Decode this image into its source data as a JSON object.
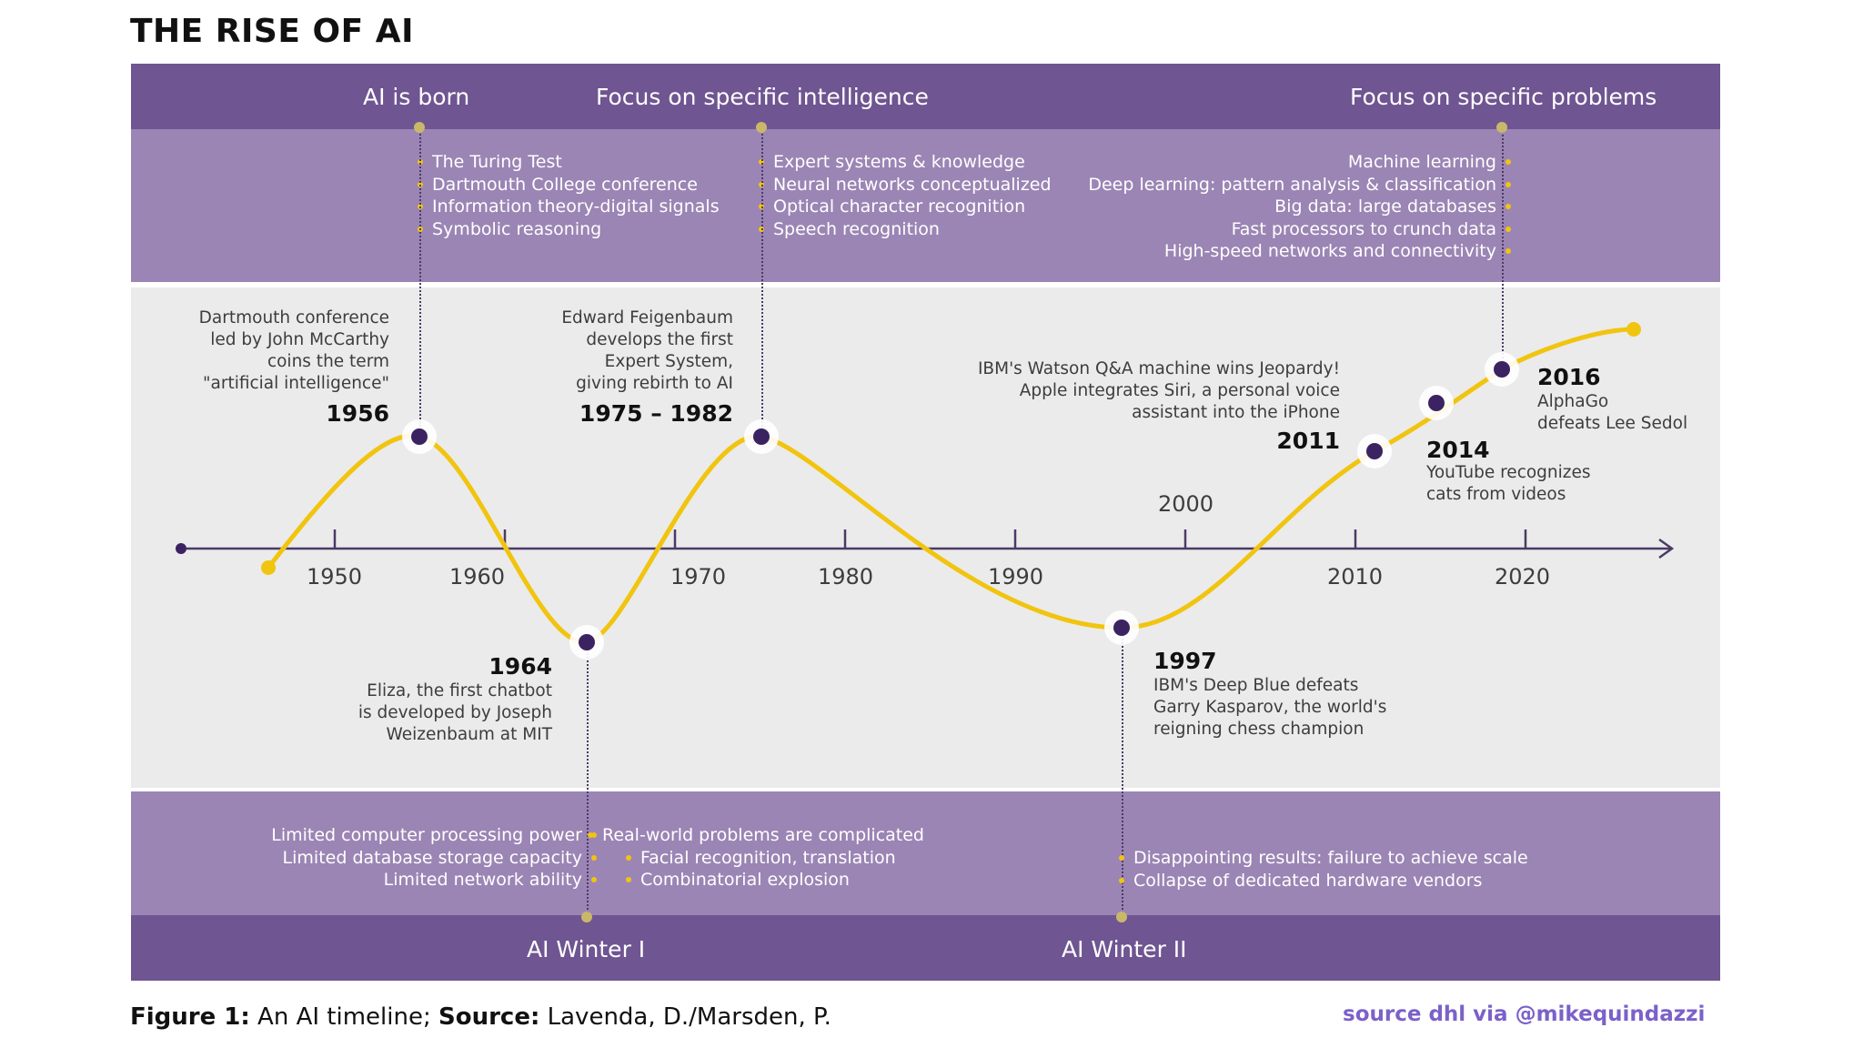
{
  "title": "THE RISE OF AI",
  "top_headers": [
    "AI is born",
    "Focus on specific intelligence",
    "Focus on specific problems"
  ],
  "top_lists": {
    "ai_born": [
      "The Turing Test",
      "Dartmouth College conference",
      "Information theory-digital signals",
      "Symbolic reasoning"
    ],
    "specific_intelligence": [
      "Expert systems & knowledge",
      "Neural networks conceptualized",
      "Optical character recognition",
      "Speech recognition"
    ],
    "specific_problems": [
      "Machine learning",
      "Deep learning: pattern analysis & classification",
      "Big data: large databases",
      "Fast processors to crunch data",
      "High-speed networks and connectivity"
    ]
  },
  "events": {
    "e1956": {
      "year": "1956",
      "lines": [
        "Dartmouth conference",
        "led by John McCarthy",
        "coins the term",
        "\"artificial intelligence\""
      ]
    },
    "e1964": {
      "year": "1964",
      "lines": [
        "Eliza, the first chatbot",
        "is developed by Joseph",
        "Weizenbaum at MIT"
      ]
    },
    "e1975": {
      "year": "1975 – 1982",
      "lines": [
        "Edward Feigenbaum",
        "develops the first",
        "Expert System,",
        "giving rebirth to AI"
      ]
    },
    "e1997": {
      "year": "1997",
      "lines": [
        "IBM's Deep Blue defeats",
        "Garry Kasparov, the world's",
        "reigning chess champion"
      ]
    },
    "e2011": {
      "year": "2011",
      "lines": [
        "IBM's Watson Q&A machine wins Jeopardy!",
        "Apple integrates Siri, a personal voice",
        "assistant into the iPhone"
      ]
    },
    "e2014": {
      "year": "2014",
      "lines": [
        "YouTube recognizes",
        "cats from videos"
      ]
    },
    "e2016": {
      "year": "2016",
      "lines": [
        "AlphaGo",
        "defeats Lee Sedol"
      ]
    }
  },
  "axis_ticks": [
    "1950",
    "1960",
    "1970",
    "1980",
    "1990",
    "2000",
    "2010",
    "2020"
  ],
  "bottom_lists": {
    "winter1_left": [
      "Limited computer processing power",
      "Limited database storage capacity",
      "Limited network ability"
    ],
    "winter1_right": [
      "Real-world problems are complicated",
      "Facial recognition, translation",
      "Combinatorial explosion"
    ],
    "winter2": [
      "Disappointing results: failure to achieve scale",
      "Collapse of dedicated hardware vendors"
    ]
  },
  "bottom_headers": [
    "AI Winter I",
    "AI Winter II"
  ],
  "caption": {
    "figure_label": "Figure 1:",
    "figure_text": " An AI timeline; ",
    "source_label": "Source:",
    "source_text": " Lavenda, D./Marsden, P."
  },
  "credit": "source dhl via @mikequindazzi",
  "colors": {
    "dark_purple": "#6f5591",
    "light_purple": "#9b85b4",
    "curve": "#f1c40f",
    "node": "#3b2361",
    "mid_bg": "#ebebeb",
    "credit": "#7b61c9"
  }
}
